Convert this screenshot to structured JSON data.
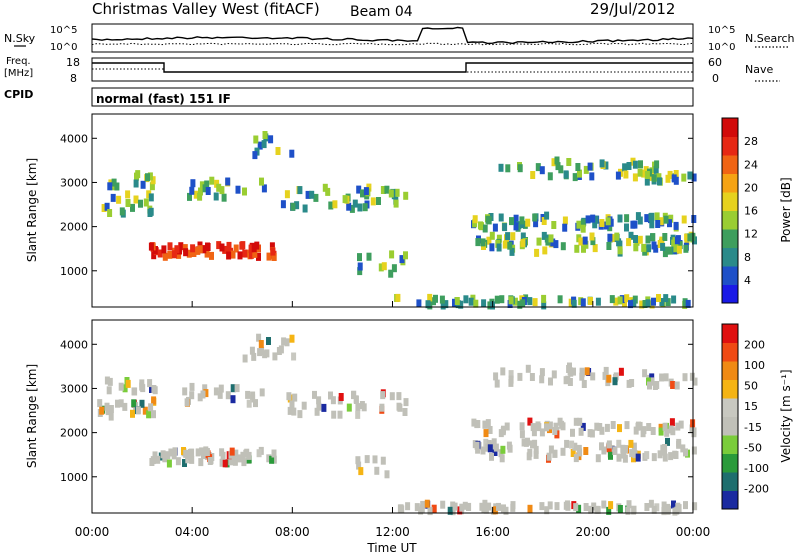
{
  "header": {
    "station": "Christmas Valley West (fitACF)",
    "beam": "Beam 04",
    "date": "29/Jul/2012"
  },
  "noise_panel": {
    "left_label": "N.Sky",
    "right_label": "N.Search",
    "left_ticks": [
      "10^5",
      "10^0"
    ],
    "right_ticks": [
      "10^5",
      "10^0"
    ]
  },
  "freq_panel": {
    "left_label_line1": "Freq.",
    "left_label_line2": "[MHz]",
    "right_label": "Nave",
    "left_ticks": [
      "18",
      "8"
    ],
    "right_ticks": [
      "60",
      "0"
    ]
  },
  "cpid": {
    "label": "CPID",
    "value": "normal (fast) 151 IF"
  },
  "chart_data": [
    {
      "type": "heatmap",
      "name": "power",
      "ylabel": "Slant Range [km]",
      "xlabel": "",
      "xlim_hours": [
        0,
        24
      ],
      "ylim": [
        180,
        4550
      ],
      "yticks": [
        "1000",
        "2000",
        "3000",
        "4000"
      ],
      "colorbar": {
        "label": "Power [dB]",
        "ticks": [
          "28",
          "24",
          "20",
          "16",
          "12",
          "8",
          "4"
        ],
        "colors": [
          "#1a1ae6",
          "#1e50c8",
          "#2a8a8a",
          "#3e9e5e",
          "#9acd32",
          "#e6d21e",
          "#f5a314",
          "#f06414",
          "#e62814",
          "#d20a0a"
        ]
      }
    },
    {
      "type": "heatmap",
      "name": "velocity",
      "ylabel": "Slant Range [km]",
      "xlabel": "Time UT",
      "xlim_hours": [
        0,
        24
      ],
      "ylim": [
        180,
        4550
      ],
      "yticks": [
        "1000",
        "2000",
        "3000",
        "4000"
      ],
      "xticks": [
        "00:00",
        "04:00",
        "08:00",
        "12:00",
        "16:00",
        "20:00",
        "00:00"
      ],
      "colorbar": {
        "label": "Velocity [m s⁻¹]",
        "ticks": [
          "200",
          "100",
          "50",
          "15",
          "-15",
          "-50",
          "-100",
          "-200"
        ],
        "colors": [
          "#1a2aa0",
          "#1e6e6e",
          "#2a9a3a",
          "#7acc3a",
          "#c0c0b8",
          "#c8c8c0",
          "#f5b414",
          "#f08a14",
          "#f04a14",
          "#e01010"
        ]
      }
    }
  ]
}
